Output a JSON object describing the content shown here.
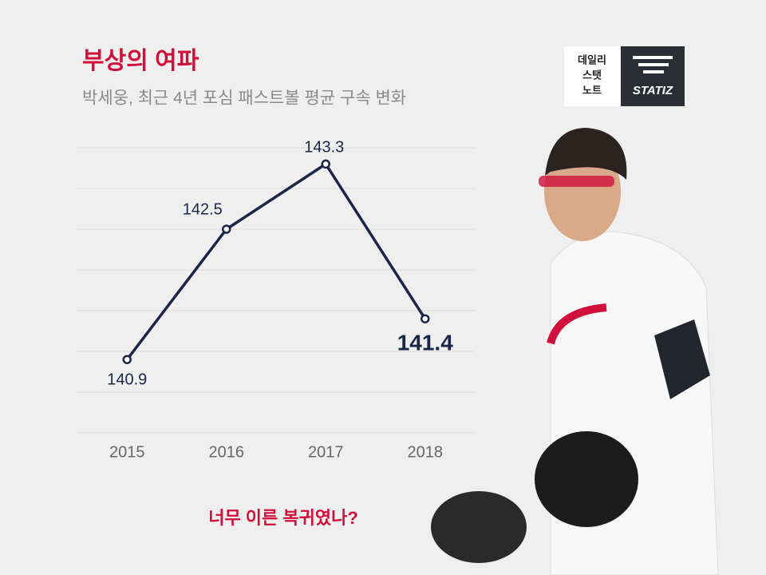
{
  "chart_data": {
    "type": "line",
    "title": "부상의 여파",
    "subtitle": "박세웅, 최근 4년 포심 패스트볼 평균 구속 변화",
    "categories": [
      "2015",
      "2016",
      "2017",
      "2018"
    ],
    "values": [
      140.9,
      142.5,
      143.3,
      141.4
    ],
    "color": "#1b2547",
    "ylim": [
      140,
      143.5
    ],
    "yticks": [
      140,
      140.5,
      141,
      141.5,
      142,
      142.5,
      143,
      143.5
    ],
    "grid": true,
    "annotation": "너무 이른 복귀였나?"
  },
  "logo": {
    "lines": [
      "데일리",
      "스탯",
      "노트"
    ],
    "brand": "STATIZ"
  }
}
